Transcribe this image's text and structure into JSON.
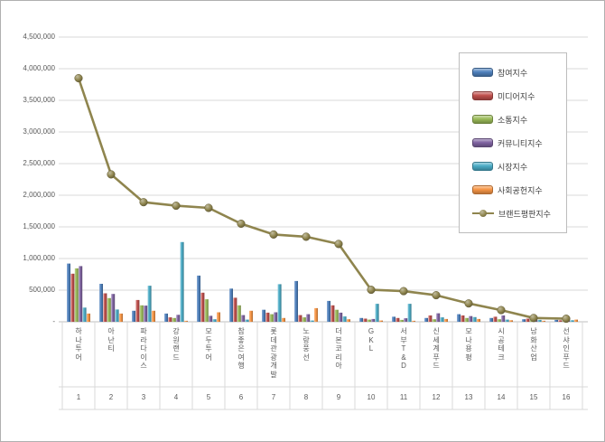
{
  "window": {
    "background": "#ffffff",
    "border_color": "#b0b0b0"
  },
  "y_axis": {
    "tick_labels": [
      "4,500,000",
      "4,000,000",
      "3,500,000",
      "3,000,000",
      "2,500,000",
      "2,000,000",
      "1,500,000",
      "1,000,000",
      "500,000",
      "-"
    ],
    "min": 0,
    "max": 4500000,
    "step": 500000,
    "text_color": "#595959"
  },
  "x_axis": {
    "numbers": [
      "1",
      "2",
      "3",
      "4",
      "5",
      "6",
      "7",
      "8",
      "9",
      "10",
      "11",
      "12",
      "13",
      "14",
      "15",
      "16"
    ]
  },
  "colors": {
    "gridline": "#d9d9d9",
    "axis_line": "#bfbfbf",
    "separator": "#d9d9d9"
  },
  "chart_data": {
    "type": "bar",
    "subtype": "clustered bars with overlay line (brand reputation combo chart)",
    "title": "",
    "xlabel": "",
    "ylabel": "",
    "ylim": [
      0,
      4500000
    ],
    "grid": true,
    "legend_position": "inside upper right",
    "categories": [
      "하나투어",
      "아난티",
      "파라다이스",
      "강원랜드",
      "모두투어",
      "참좋은여행",
      "롯데관광개발",
      "노랑풍선",
      "더본코리아",
      "GKL",
      "서부T&D",
      "신세계푸드",
      "모나용평",
      "시공테크",
      "남화산업",
      "선샤인푸드"
    ],
    "series": [
      {
        "name": "참여지수",
        "type": "bar",
        "color": "#4F81BD",
        "values": [
          920000,
          600000,
          175000,
          130000,
          730000,
          525000,
          190000,
          645000,
          330000,
          60000,
          80000,
          60000,
          120000,
          60000,
          40000,
          30000
        ]
      },
      {
        "name": "미디어지수",
        "type": "bar",
        "color": "#C0504D",
        "values": [
          760000,
          450000,
          345000,
          70000,
          460000,
          380000,
          145000,
          105000,
          260000,
          50000,
          60000,
          100000,
          100000,
          80000,
          50000,
          25000
        ]
      },
      {
        "name": "소통지수",
        "type": "bar",
        "color": "#9BBB59",
        "values": [
          845000,
          375000,
          260000,
          60000,
          355000,
          260000,
          120000,
          70000,
          190000,
          35000,
          30000,
          40000,
          60000,
          40000,
          25000,
          15000
        ]
      },
      {
        "name": "커뮤니티지수",
        "type": "bar",
        "color": "#8064A2",
        "values": [
          880000,
          440000,
          255000,
          110000,
          95000,
          105000,
          150000,
          120000,
          145000,
          45000,
          55000,
          135000,
          90000,
          100000,
          35000,
          20000
        ]
      },
      {
        "name": "시장지수",
        "type": "bar",
        "color": "#4BACC6",
        "values": [
          225000,
          195000,
          570000,
          1260000,
          40000,
          35000,
          595000,
          20000,
          85000,
          285000,
          285000,
          70000,
          75000,
          35000,
          30000,
          25000
        ]
      },
      {
        "name": "사회공헌지수",
        "type": "bar",
        "color": "#F79646",
        "values": [
          130000,
          130000,
          175000,
          15000,
          150000,
          175000,
          60000,
          215000,
          40000,
          20000,
          15000,
          45000,
          45000,
          25000,
          15000,
          35000
        ]
      },
      {
        "name": "브랜드평판지수",
        "type": "line",
        "color": "#8F854E",
        "values": [
          3850000,
          2330000,
          1890000,
          1835000,
          1800000,
          1550000,
          1380000,
          1345000,
          1230000,
          505000,
          485000,
          420000,
          290000,
          185000,
          60000,
          48000
        ]
      }
    ]
  }
}
